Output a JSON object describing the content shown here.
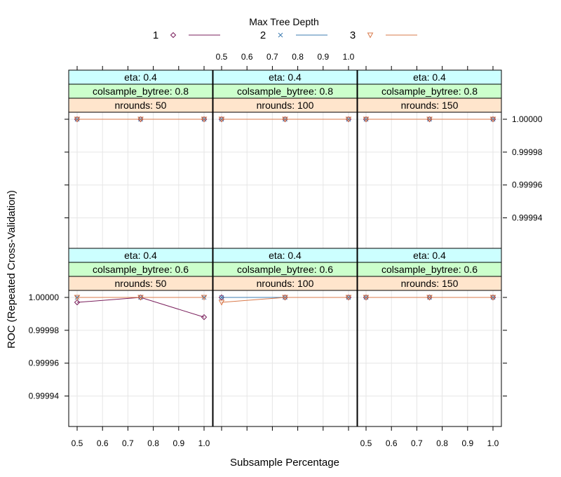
{
  "chart_data": {
    "type": "line",
    "legend": {
      "title": "Max Tree Depth",
      "position": "top",
      "series": [
        {
          "name": "1",
          "color": "#7a1f5c",
          "marker": "diamond"
        },
        {
          "name": "2",
          "color": "#3e7cb1",
          "marker": "cross"
        },
        {
          "name": "3",
          "color": "#d9794a",
          "marker": "triangle-down"
        }
      ]
    },
    "xlabel": "Subsample Percentage",
    "ylabel": "ROC (Repeated Cross-Validation)",
    "xlim": [
      0.5,
      1.0
    ],
    "ylim": [
      0.99993,
      1.0
    ],
    "x_ticks": [
      "0.5",
      "0.6",
      "0.7",
      "0.8",
      "0.9",
      "1.0"
    ],
    "y_ticks": [
      "0.99994",
      "0.99996",
      "0.99998",
      "1.00000"
    ],
    "grid": true,
    "panels": [
      {
        "strips": [
          "eta: 0.4",
          "colsample_bytree: 0.6",
          "nrounds:  50"
        ],
        "series": [
          {
            "name": "1",
            "x": [
              0.5,
              0.75,
              1.0
            ],
            "y": [
              0.999997,
              1.0,
              0.999988
            ]
          },
          {
            "name": "2",
            "x": [
              0.5,
              0.75,
              1.0
            ],
            "y": [
              1.0,
              1.0,
              1.0
            ]
          },
          {
            "name": "3",
            "x": [
              0.5,
              0.75,
              1.0
            ],
            "y": [
              1.0,
              1.0,
              1.0
            ]
          }
        ]
      },
      {
        "strips": [
          "eta: 0.4",
          "colsample_bytree: 0.6",
          "nrounds: 100"
        ],
        "series": [
          {
            "name": "1",
            "x": [
              0.5,
              0.75,
              1.0
            ],
            "y": [
              1.0,
              1.0,
              1.0
            ]
          },
          {
            "name": "2",
            "x": [
              0.5,
              0.75,
              1.0
            ],
            "y": [
              1.0,
              1.0,
              1.0
            ]
          },
          {
            "name": "3",
            "x": [
              0.5,
              0.75,
              1.0
            ],
            "y": [
              0.999997,
              1.0,
              1.0
            ]
          }
        ]
      },
      {
        "strips": [
          "eta: 0.4",
          "colsample_bytree: 0.6",
          "nrounds: 150"
        ],
        "series": [
          {
            "name": "1",
            "x": [
              0.5,
              0.75,
              1.0
            ],
            "y": [
              1.0,
              1.0,
              1.0
            ]
          },
          {
            "name": "2",
            "x": [
              0.5,
              0.75,
              1.0
            ],
            "y": [
              1.0,
              1.0,
              1.0
            ]
          },
          {
            "name": "3",
            "x": [
              0.5,
              0.75,
              1.0
            ],
            "y": [
              1.0,
              1.0,
              1.0
            ]
          }
        ]
      },
      {
        "strips": [
          "eta: 0.4",
          "colsample_bytree: 0.8",
          "nrounds:  50"
        ],
        "series": [
          {
            "name": "1",
            "x": [
              0.5,
              0.75,
              1.0
            ],
            "y": [
              1.0,
              1.0,
              1.0
            ]
          },
          {
            "name": "2",
            "x": [
              0.5,
              0.75,
              1.0
            ],
            "y": [
              1.0,
              1.0,
              1.0
            ]
          },
          {
            "name": "3",
            "x": [
              0.5,
              0.75,
              1.0
            ],
            "y": [
              1.0,
              1.0,
              1.0
            ]
          }
        ]
      },
      {
        "strips": [
          "eta: 0.4",
          "colsample_bytree: 0.8",
          "nrounds: 100"
        ],
        "series": [
          {
            "name": "1",
            "x": [
              0.5,
              0.75,
              1.0
            ],
            "y": [
              1.0,
              1.0,
              1.0
            ]
          },
          {
            "name": "2",
            "x": [
              0.5,
              0.75,
              1.0
            ],
            "y": [
              1.0,
              1.0,
              1.0
            ]
          },
          {
            "name": "3",
            "x": [
              0.5,
              0.75,
              1.0
            ],
            "y": [
              1.0,
              1.0,
              1.0
            ]
          }
        ]
      },
      {
        "strips": [
          "eta: 0.4",
          "colsample_bytree: 0.8",
          "nrounds: 150"
        ],
        "series": [
          {
            "name": "1",
            "x": [
              0.5,
              0.75,
              1.0
            ],
            "y": [
              1.0,
              1.0,
              1.0
            ]
          },
          {
            "name": "2",
            "x": [
              0.5,
              0.75,
              1.0
            ],
            "y": [
              1.0,
              1.0,
              1.0
            ]
          },
          {
            "name": "3",
            "x": [
              0.5,
              0.75,
              1.0
            ],
            "y": [
              1.0,
              1.0,
              1.0
            ]
          }
        ]
      }
    ],
    "strip_colors": [
      "#ccffff",
      "#ccffcc",
      "#ffe5cc"
    ],
    "grid_color": "#e6e6e6"
  }
}
